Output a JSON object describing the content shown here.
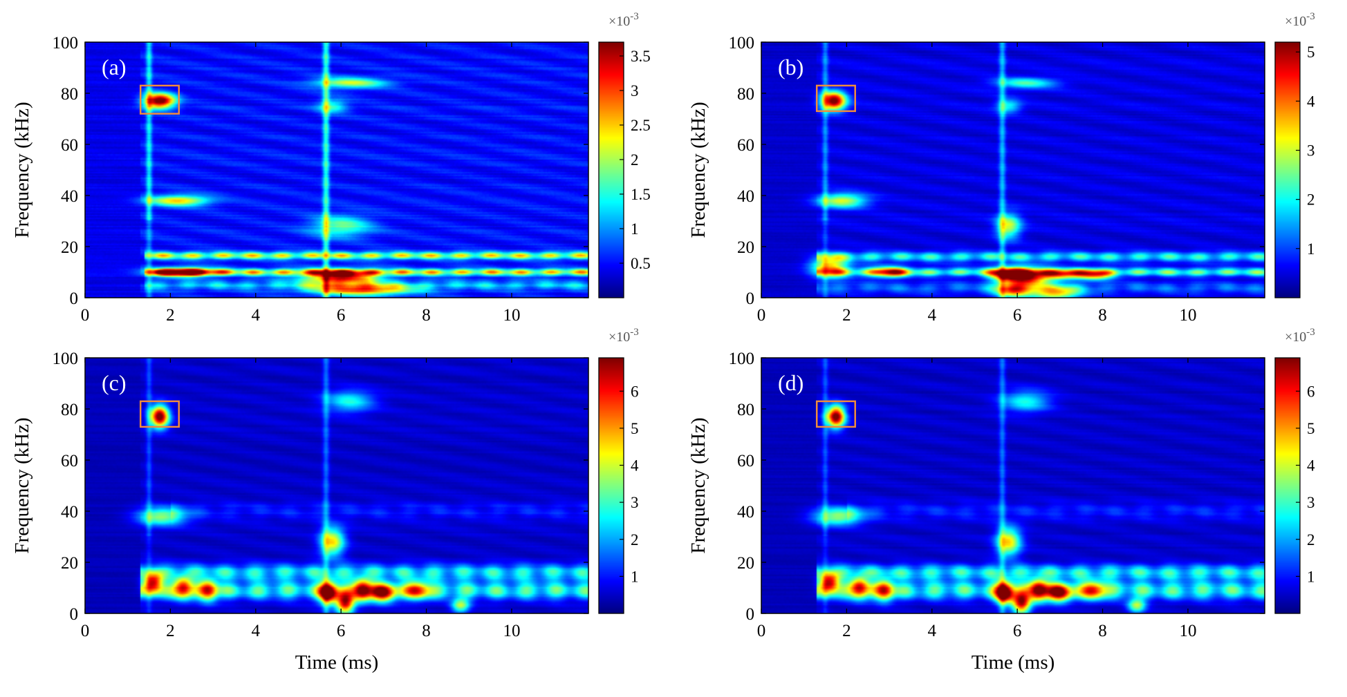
{
  "chart_data": [
    {
      "type": "heatmap",
      "panel_label": "(a)",
      "xlabel": "",
      "ylabel": "Frequency (kHz)",
      "xlim": [
        0,
        11.8
      ],
      "ylim": [
        0,
        100
      ],
      "x_ticks": [
        "0",
        "2",
        "4",
        "6",
        "8",
        "10"
      ],
      "y_ticks": [
        "0",
        "20",
        "40",
        "60",
        "80",
        "100"
      ],
      "colorbar": {
        "multiplier": "×10",
        "exponent": "-3",
        "range": [
          0,
          3.7
        ],
        "ticks": [
          "0.5",
          "1",
          "1.5",
          "2",
          "2.5",
          "3",
          "3.5"
        ]
      },
      "highlight_box": {
        "time_range": [
          1.3,
          2.2
        ],
        "freq_range": [
          72,
          83
        ]
      },
      "features": [
        {
          "t": 1.75,
          "f": 77,
          "amplitude": 3.6,
          "dt": 0.25,
          "df": 2.0
        },
        {
          "t": 2.3,
          "f": 10,
          "amplitude": 3.0,
          "dt": 0.5,
          "df": 1.2
        },
        {
          "t": 6.0,
          "f": 8,
          "amplitude": 2.8,
          "dt": 0.6,
          "df": 2.0
        },
        {
          "t": 6.5,
          "f": 3,
          "amplitude": 2.4,
          "dt": 0.8,
          "df": 1.5
        },
        {
          "t": 2.2,
          "f": 38,
          "amplitude": 2.0,
          "dt": 0.5,
          "df": 1.5
        },
        {
          "t": 6.2,
          "f": 84,
          "amplitude": 1.6,
          "dt": 0.6,
          "df": 1.5
        },
        {
          "t": 5.8,
          "f": 75,
          "amplitude": 1.1,
          "dt": 0.25,
          "df": 2.0
        },
        {
          "t": 6.0,
          "f": 28,
          "amplitude": 1.3,
          "dt": 0.5,
          "df": 3.0
        }
      ],
      "bands": [
        {
          "f": 16.5,
          "t_start": 1.4,
          "t_end": 11.8,
          "amplitude": 2.1,
          "df": 1.0
        },
        {
          "f": 10,
          "t_start": 1.4,
          "t_end": 11.8,
          "amplitude": 2.3,
          "df": 0.9
        },
        {
          "f": 5,
          "t_start": 1.4,
          "t_end": 11.8,
          "amplitude": 0.9,
          "df": 1.5
        }
      ]
    },
    {
      "type": "heatmap",
      "panel_label": "(b)",
      "xlabel": "",
      "ylabel": "Frequency (kHz)",
      "xlim": [
        0,
        11.8
      ],
      "ylim": [
        0,
        100
      ],
      "x_ticks": [
        "0",
        "2",
        "4",
        "6",
        "8",
        "10"
      ],
      "y_ticks": [
        "0",
        "20",
        "40",
        "60",
        "80",
        "100"
      ],
      "colorbar": {
        "multiplier": "×10",
        "exponent": "-3",
        "range": [
          0,
          5.2
        ],
        "ticks": [
          "1",
          "2",
          "3",
          "4",
          "5"
        ]
      },
      "highlight_box": {
        "time_range": [
          1.3,
          2.2
        ],
        "freq_range": [
          73,
          83
        ]
      },
      "features": [
        {
          "t": 1.7,
          "f": 77,
          "amplitude": 5.0,
          "dt": 0.2,
          "df": 2.5
        },
        {
          "t": 5.8,
          "f": 9,
          "amplitude": 4.5,
          "dt": 0.3,
          "df": 2.0
        },
        {
          "t": 6.3,
          "f": 8,
          "amplitude": 3.5,
          "dt": 0.3,
          "df": 2.5
        },
        {
          "t": 3.0,
          "f": 10,
          "amplitude": 3.2,
          "dt": 0.3,
          "df": 1.5
        },
        {
          "t": 7.0,
          "f": 9,
          "amplitude": 3.0,
          "dt": 0.3,
          "df": 1.5
        },
        {
          "t": 7.8,
          "f": 9,
          "amplitude": 3.2,
          "dt": 0.3,
          "df": 1.5
        },
        {
          "t": 5.9,
          "f": 3,
          "amplitude": 3.3,
          "dt": 0.3,
          "df": 2.0
        },
        {
          "t": 6.9,
          "f": 2,
          "amplitude": 3.0,
          "dt": 0.4,
          "df": 2.0
        },
        {
          "t": 1.6,
          "f": 12,
          "amplitude": 3.0,
          "dt": 0.3,
          "df": 3.0
        },
        {
          "t": 1.9,
          "f": 38,
          "amplitude": 2.6,
          "dt": 0.4,
          "df": 2.0
        },
        {
          "t": 5.8,
          "f": 28,
          "amplitude": 2.5,
          "dt": 0.2,
          "df": 3.5
        },
        {
          "t": 6.2,
          "f": 84,
          "amplitude": 1.8,
          "dt": 0.5,
          "df": 1.5
        },
        {
          "t": 5.8,
          "f": 75,
          "amplitude": 1.5,
          "dt": 0.2,
          "df": 2.0
        }
      ],
      "bands": [
        {
          "f": 16,
          "t_start": 1.3,
          "t_end": 11.8,
          "amplitude": 1.9,
          "df": 1.3
        },
        {
          "f": 10,
          "t_start": 1.3,
          "t_end": 11.8,
          "amplitude": 2.3,
          "df": 1.1
        },
        {
          "f": 4,
          "t_start": 1.3,
          "t_end": 11.8,
          "amplitude": 0.9,
          "df": 1.5
        }
      ]
    },
    {
      "type": "heatmap",
      "panel_label": "(c)",
      "xlabel": "Time (ms)",
      "ylabel": "Frequency (kHz)",
      "xlim": [
        0,
        11.8
      ],
      "ylim": [
        0,
        100
      ],
      "x_ticks": [
        "0",
        "2",
        "4",
        "6",
        "8",
        "10"
      ],
      "y_ticks": [
        "0",
        "20",
        "40",
        "60",
        "80",
        "100"
      ],
      "colorbar": {
        "multiplier": "×10",
        "exponent": "-3",
        "range": [
          0,
          6.9
        ],
        "ticks": [
          "1",
          "2",
          "3",
          "4",
          "5",
          "6"
        ]
      },
      "highlight_box": {
        "time_range": [
          1.3,
          2.2
        ],
        "freq_range": [
          73,
          83
        ]
      },
      "features": [
        {
          "t": 1.75,
          "f": 77,
          "amplitude": 6.8,
          "dt": 0.15,
          "df": 3.0
        },
        {
          "t": 5.7,
          "f": 8,
          "amplitude": 6.5,
          "dt": 0.15,
          "df": 3.0
        },
        {
          "t": 6.1,
          "f": 4,
          "amplitude": 5.8,
          "dt": 0.15,
          "df": 3.0
        },
        {
          "t": 6.5,
          "f": 9,
          "amplitude": 5.5,
          "dt": 0.15,
          "df": 3.0
        },
        {
          "t": 7.0,
          "f": 8,
          "amplitude": 5.2,
          "dt": 0.2,
          "df": 2.5
        },
        {
          "t": 1.6,
          "f": 12,
          "amplitude": 5.0,
          "dt": 0.15,
          "df": 3.0
        },
        {
          "t": 2.3,
          "f": 10,
          "amplitude": 4.6,
          "dt": 0.15,
          "df": 3.0
        },
        {
          "t": 2.9,
          "f": 9,
          "amplitude": 4.2,
          "dt": 0.15,
          "df": 3.0
        },
        {
          "t": 7.8,
          "f": 9,
          "amplitude": 4.0,
          "dt": 0.2,
          "df": 2.5
        },
        {
          "t": 1.8,
          "f": 38,
          "amplitude": 3.2,
          "dt": 0.4,
          "df": 2.5
        },
        {
          "t": 5.8,
          "f": 28,
          "amplitude": 4.0,
          "dt": 0.2,
          "df": 4.0
        },
        {
          "t": 6.2,
          "f": 83,
          "amplitude": 2.2,
          "dt": 0.4,
          "df": 3.0
        },
        {
          "t": 8.8,
          "f": 3,
          "amplitude": 3.2,
          "dt": 0.15,
          "df": 2.0
        }
      ],
      "bands": [
        {
          "f": 16,
          "t_start": 1.3,
          "t_end": 11.8,
          "amplitude": 2.6,
          "df": 2.2
        },
        {
          "f": 9,
          "t_start": 1.3,
          "t_end": 11.8,
          "amplitude": 3.0,
          "df": 2.5
        },
        {
          "f": 40,
          "t_start": 2.0,
          "t_end": 11.8,
          "amplitude": 0.7,
          "df": 2.5
        }
      ]
    },
    {
      "type": "heatmap",
      "panel_label": "(d)",
      "xlabel": "Time (ms)",
      "ylabel": "Frequency (kHz)",
      "xlim": [
        0,
        11.8
      ],
      "ylim": [
        0,
        100
      ],
      "x_ticks": [
        "0",
        "2",
        "4",
        "6",
        "8",
        "10"
      ],
      "y_ticks": [
        "0",
        "20",
        "40",
        "60",
        "80",
        "100"
      ],
      "colorbar": {
        "multiplier": "×10",
        "exponent": "-3",
        "range": [
          0,
          6.9
        ],
        "ticks": [
          "1",
          "2",
          "3",
          "4",
          "5",
          "6"
        ]
      },
      "highlight_box": {
        "time_range": [
          1.3,
          2.2
        ],
        "freq_range": [
          73,
          83
        ]
      },
      "features": [
        {
          "t": 1.75,
          "f": 77,
          "amplitude": 6.8,
          "dt": 0.15,
          "df": 3.0
        },
        {
          "t": 5.7,
          "f": 8,
          "amplitude": 6.5,
          "dt": 0.15,
          "df": 3.0
        },
        {
          "t": 6.1,
          "f": 4,
          "amplitude": 5.8,
          "dt": 0.15,
          "df": 3.0
        },
        {
          "t": 6.5,
          "f": 9,
          "amplitude": 5.5,
          "dt": 0.15,
          "df": 3.0
        },
        {
          "t": 7.0,
          "f": 8,
          "amplitude": 5.2,
          "dt": 0.2,
          "df": 2.5
        },
        {
          "t": 1.6,
          "f": 12,
          "amplitude": 5.0,
          "dt": 0.15,
          "df": 3.0
        },
        {
          "t": 2.3,
          "f": 10,
          "amplitude": 4.6,
          "dt": 0.15,
          "df": 3.0
        },
        {
          "t": 2.9,
          "f": 9,
          "amplitude": 4.2,
          "dt": 0.15,
          "df": 3.0
        },
        {
          "t": 7.8,
          "f": 9,
          "amplitude": 4.0,
          "dt": 0.2,
          "df": 2.5
        },
        {
          "t": 1.8,
          "f": 38,
          "amplitude": 3.2,
          "dt": 0.4,
          "df": 2.5
        },
        {
          "t": 5.8,
          "f": 28,
          "amplitude": 4.0,
          "dt": 0.2,
          "df": 4.0
        },
        {
          "t": 6.2,
          "f": 83,
          "amplitude": 2.2,
          "dt": 0.4,
          "df": 3.0
        },
        {
          "t": 8.8,
          "f": 3,
          "amplitude": 3.2,
          "dt": 0.15,
          "df": 2.0
        }
      ],
      "bands": [
        {
          "f": 16,
          "t_start": 1.3,
          "t_end": 11.8,
          "amplitude": 2.6,
          "df": 2.2
        },
        {
          "f": 9,
          "t_start": 1.3,
          "t_end": 11.8,
          "amplitude": 3.0,
          "df": 2.5
        },
        {
          "f": 40,
          "t_start": 2.0,
          "t_end": 11.8,
          "amplitude": 0.7,
          "df": 2.5
        }
      ]
    }
  ]
}
